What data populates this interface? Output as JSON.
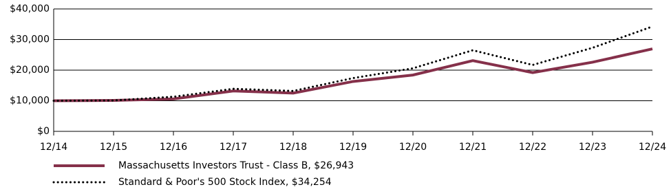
{
  "chart_data": {
    "type": "line",
    "categories": [
      "12/14",
      "12/15",
      "12/16",
      "12/17",
      "12/18",
      "12/19",
      "12/20",
      "12/21",
      "12/22",
      "12/23",
      "12/24"
    ],
    "series": [
      {
        "name": "Massachusetts Investors Trust - Class B, $26,943",
        "color": "#85304a",
        "style": "solid",
        "values": [
          10000,
          10100,
          10600,
          13200,
          12500,
          16300,
          18400,
          23100,
          19200,
          22600,
          26943
        ]
      },
      {
        "name": "Standard & Poor's 500 Stock Index, $34,254",
        "color": "#000000",
        "style": "dotted",
        "values": [
          10000,
          10100,
          11300,
          13900,
          13200,
          17400,
          20600,
          26500,
          21700,
          27300,
          34254
        ]
      }
    ],
    "ylim": [
      0,
      40000
    ],
    "yticks": [
      {
        "value": 0,
        "label": "$0"
      },
      {
        "value": 10000,
        "label": "$10,000"
      },
      {
        "value": 20000,
        "label": "$20,000"
      },
      {
        "value": 30000,
        "label": "$30,000"
      },
      {
        "value": 40000,
        "label": "$40,000"
      }
    ],
    "grid": true
  }
}
